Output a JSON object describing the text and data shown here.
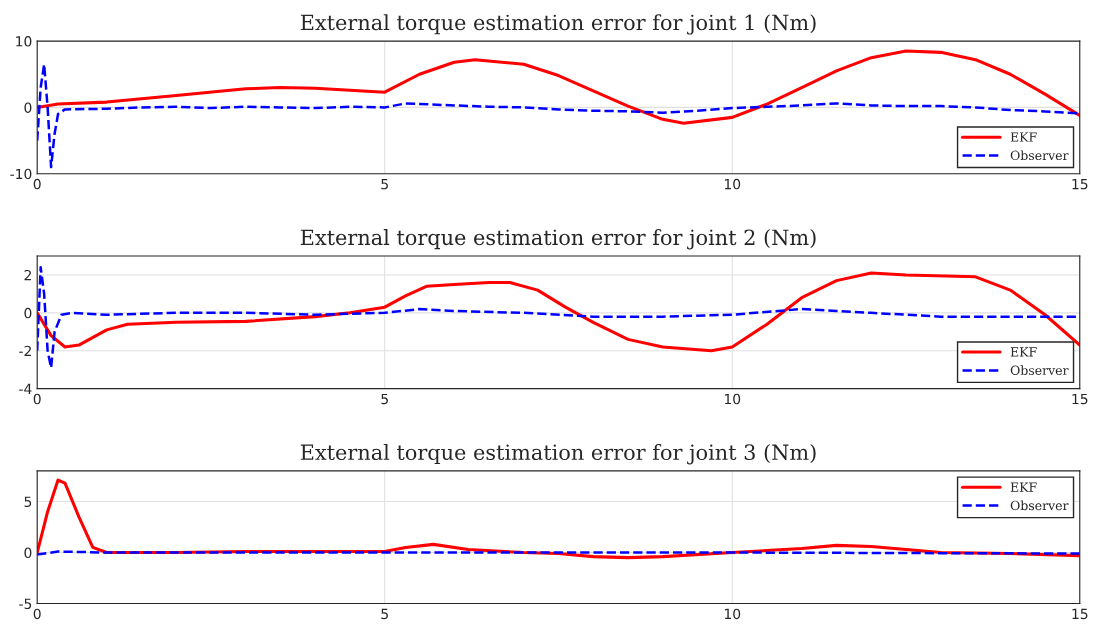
{
  "chart_data": [
    {
      "type": "line",
      "title": "External torque estimation error for joint 1 (Nm)",
      "xlim": [
        0,
        15
      ],
      "xticks": [
        0,
        5,
        10,
        15
      ],
      "ylim": [
        -10,
        10
      ],
      "yticks": [
        -10,
        0,
        10
      ],
      "grid": true,
      "legend": "bottom right",
      "series": [
        {
          "name": "EKF",
          "color": "#ff0000",
          "line_style": "solid",
          "x": [
            0,
            0.3,
            1,
            2,
            3,
            3.5,
            4,
            5,
            5.5,
            6,
            6.3,
            7,
            7.5,
            8,
            8.5,
            9,
            9.3,
            10,
            10.5,
            11,
            11.5,
            12,
            12.5,
            13,
            13.5,
            14,
            14.5,
            15
          ],
          "values": [
            0,
            0.5,
            0.8,
            1.8,
            2.8,
            3.0,
            2.9,
            2.3,
            5.0,
            6.8,
            7.2,
            6.5,
            4.8,
            2.5,
            0.2,
            -1.8,
            -2.4,
            -1.5,
            0.5,
            3.0,
            5.5,
            7.5,
            8.5,
            8.3,
            7.2,
            5.0,
            2.0,
            -1.2
          ]
        },
        {
          "name": "Observer",
          "color": "#0000ff",
          "line_style": "dashed",
          "x": [
            0,
            0.05,
            0.1,
            0.15,
            0.2,
            0.25,
            0.3,
            0.4,
            1,
            1.5,
            2,
            2.5,
            3,
            3.5,
            4,
            4.5,
            5,
            5.3,
            6,
            6.5,
            7,
            7.5,
            8,
            8.5,
            9,
            9.5,
            10,
            10.5,
            11,
            11.5,
            12,
            12.5,
            13,
            13.5,
            14,
            14.5,
            15
          ],
          "values": [
            -5,
            3,
            6.5,
            0,
            -9,
            -4,
            -1,
            -0.3,
            -0.2,
            0,
            0.1,
            -0.1,
            0.1,
            0,
            -0.1,
            0.1,
            0,
            0.6,
            0.3,
            0.1,
            0,
            -0.3,
            -0.5,
            -0.6,
            -0.8,
            -0.5,
            -0.1,
            0.1,
            0.3,
            0.6,
            0.3,
            0.2,
            0.2,
            0,
            -0.4,
            -0.6,
            -0.9
          ]
        }
      ]
    },
    {
      "type": "line",
      "title": "External torque estimation error for joint 2 (Nm)",
      "xlim": [
        0,
        15
      ],
      "xticks": [
        0,
        5,
        10,
        15
      ],
      "ylim": [
        -4,
        3
      ],
      "yticks": [
        -4,
        -2,
        0,
        2
      ],
      "grid": true,
      "legend": "bottom right",
      "series": [
        {
          "name": "EKF",
          "color": "#ff0000",
          "line_style": "solid",
          "x": [
            0,
            0.2,
            0.4,
            0.6,
            1,
            1.3,
            2,
            3,
            4,
            4.5,
            5,
            5.3,
            5.6,
            6,
            6.5,
            6.8,
            7.2,
            7.6,
            8,
            8.5,
            9,
            9.7,
            10,
            10.5,
            11,
            11.5,
            12,
            12.5,
            13.5,
            14,
            14.5,
            15
          ],
          "values": [
            0,
            -1.2,
            -1.8,
            -1.7,
            -0.9,
            -0.6,
            -0.5,
            -0.45,
            -0.2,
            0.0,
            0.3,
            0.9,
            1.4,
            1.5,
            1.6,
            1.6,
            1.2,
            0.3,
            -0.5,
            -1.4,
            -1.8,
            -2.0,
            -1.8,
            -0.6,
            0.8,
            1.7,
            2.1,
            2.0,
            1.9,
            1.2,
            -0.1,
            -1.7
          ]
        },
        {
          "name": "Observer",
          "color": "#0000ff",
          "line_style": "dashed",
          "x": [
            0,
            0.05,
            0.1,
            0.15,
            0.2,
            0.25,
            0.35,
            0.5,
            1,
            2,
            3,
            4,
            5,
            5.5,
            6,
            7,
            8,
            9,
            10,
            11,
            11.5,
            12,
            13,
            14,
            15
          ],
          "values": [
            -2,
            2.4,
            1.0,
            -2.0,
            -2.9,
            -1.0,
            -0.1,
            0.0,
            -0.1,
            0,
            0,
            -0.1,
            0,
            0.2,
            0.1,
            0,
            -0.2,
            -0.2,
            -0.1,
            0.2,
            0.1,
            0,
            -0.2,
            -0.2,
            -0.2
          ]
        }
      ]
    },
    {
      "type": "line",
      "title": "External torque estimation error for joint 3 (Nm)",
      "xlim": [
        0,
        15
      ],
      "xticks": [
        0,
        5,
        10,
        15
      ],
      "ylim": [
        -5,
        8
      ],
      "yticks": [
        -5,
        0,
        5
      ],
      "grid": true,
      "legend": "top right",
      "series": [
        {
          "name": "EKF",
          "color": "#ff0000",
          "line_style": "solid",
          "x": [
            0,
            0.15,
            0.3,
            0.4,
            0.6,
            0.8,
            1,
            2,
            3,
            5,
            5.3,
            5.7,
            6.2,
            7,
            7.5,
            8,
            8.5,
            9,
            10,
            11,
            11.5,
            12,
            13,
            14,
            15
          ],
          "values": [
            0,
            4,
            7.1,
            6.8,
            3.5,
            0.5,
            0,
            0,
            0.1,
            0.1,
            0.5,
            0.8,
            0.3,
            0,
            -0.1,
            -0.4,
            -0.5,
            -0.4,
            0,
            0.4,
            0.7,
            0.6,
            0,
            -0.1,
            -0.3
          ]
        },
        {
          "name": "Observer",
          "color": "#0000ff",
          "line_style": "dashed",
          "x": [
            0,
            0.3,
            1,
            5,
            10,
            15
          ],
          "values": [
            -0.2,
            0.1,
            0,
            0,
            0,
            -0.1
          ]
        }
      ]
    }
  ]
}
